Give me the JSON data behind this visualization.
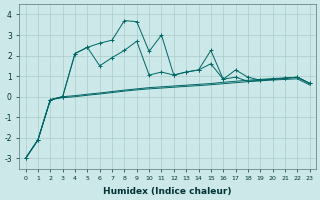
{
  "xlabel": "Humidex (Indice chaleur)",
  "bg_color": "#cce8e8",
  "grid_color": "#aacccc",
  "line_color": "#006666",
  "ylim": [
    -3.5,
    4.5
  ],
  "xlim": [
    -0.5,
    23.5
  ],
  "series1_x": [
    0,
    1,
    2,
    3,
    4,
    5,
    6,
    7,
    8,
    9,
    10,
    11,
    12,
    13,
    14,
    15,
    16,
    17,
    18,
    19,
    20,
    21,
    22,
    23
  ],
  "series1_y": [
    -3.0,
    -2.1,
    -0.15,
    0.0,
    2.1,
    2.4,
    2.6,
    2.75,
    3.7,
    3.65,
    2.2,
    3.0,
    1.05,
    1.2,
    1.3,
    2.25,
    0.85,
    1.3,
    0.95,
    0.8,
    0.85,
    0.9,
    0.95,
    0.65
  ],
  "series2_x": [
    0,
    1,
    2,
    3,
    4,
    5,
    6,
    7,
    8,
    9,
    10,
    11,
    12,
    13,
    14,
    15,
    16,
    17,
    18,
    19,
    20,
    21,
    22,
    23
  ],
  "series2_y": [
    -3.0,
    -2.1,
    -0.15,
    0.0,
    2.1,
    2.4,
    1.5,
    1.9,
    2.25,
    2.7,
    1.05,
    1.2,
    1.05,
    1.2,
    1.3,
    1.6,
    0.85,
    0.95,
    0.75,
    0.8,
    0.85,
    0.9,
    0.95,
    0.65
  ],
  "series3_x": [
    0,
    1,
    2,
    3,
    4,
    5,
    6,
    7,
    8,
    9,
    10,
    11,
    12,
    13,
    14,
    15,
    16,
    17,
    18,
    19,
    20,
    21,
    22,
    23
  ],
  "series3_y": [
    -3.0,
    -2.1,
    -0.15,
    0.0,
    0.05,
    0.12,
    0.18,
    0.25,
    0.32,
    0.38,
    0.44,
    0.48,
    0.52,
    0.56,
    0.6,
    0.64,
    0.7,
    0.75,
    0.8,
    0.84,
    0.88,
    0.91,
    0.94,
    0.65
  ],
  "series4_x": [
    0,
    1,
    2,
    3,
    4,
    5,
    6,
    7,
    8,
    9,
    10,
    11,
    12,
    13,
    14,
    15,
    16,
    17,
    18,
    19,
    20,
    21,
    22,
    23
  ],
  "series4_y": [
    -3.0,
    -2.1,
    -0.15,
    -0.05,
    0.0,
    0.07,
    0.13,
    0.2,
    0.27,
    0.33,
    0.38,
    0.42,
    0.46,
    0.5,
    0.54,
    0.58,
    0.63,
    0.68,
    0.73,
    0.77,
    0.81,
    0.84,
    0.87,
    0.57
  ]
}
